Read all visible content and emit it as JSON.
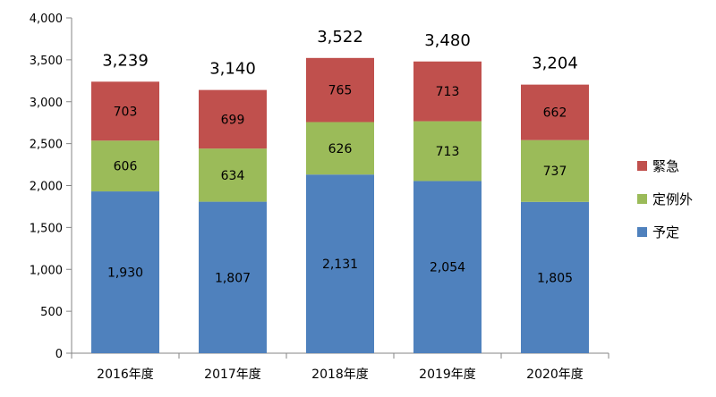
{
  "chart_data": {
    "type": "bar",
    "stacked": true,
    "categories": [
      "2016年度",
      "2017年度",
      "2018年度",
      "2019年度",
      "2020年度"
    ],
    "series": [
      {
        "name": "予定",
        "color": "#4f81bd",
        "values": [
          1930,
          1807,
          2131,
          2054,
          1805
        ],
        "labels": [
          "1,930",
          "1,807",
          "2,131",
          "2,054",
          "1,805"
        ]
      },
      {
        "name": "定例外",
        "color": "#9bbb59",
        "values": [
          606,
          634,
          626,
          713,
          737
        ],
        "labels": [
          "606",
          "634",
          "626",
          "713",
          "737"
        ]
      },
      {
        "name": "緊急",
        "color": "#c0504d",
        "values": [
          703,
          699,
          765,
          713,
          662
        ],
        "labels": [
          "703",
          "699",
          "765",
          "713",
          "662"
        ]
      }
    ],
    "totals": [
      3239,
      3140,
      3522,
      3480,
      3204
    ],
    "total_labels": [
      "3,239",
      "3,140",
      "3,522",
      "3,480",
      "3,204"
    ],
    "ylim": [
      0,
      4000
    ],
    "yticks": [
      0,
      500,
      1000,
      1500,
      2000,
      2500,
      3000,
      3500,
      4000
    ],
    "ytick_labels": [
      "0",
      "500",
      "1,000",
      "1,500",
      "2,000",
      "2,500",
      "3,000",
      "3,500",
      "4,000"
    ],
    "grid": false,
    "legend_position": "right",
    "legend_order": [
      "緊急",
      "定例外",
      "予定"
    ]
  }
}
